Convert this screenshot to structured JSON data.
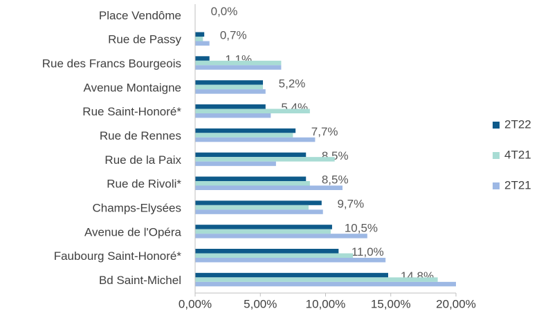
{
  "chart_data": {
    "type": "hbar",
    "categories": [
      "Place Vendôme",
      "Rue de Passy",
      "Rue des Francs Bourgeois",
      "Avenue Montaigne",
      "Rue Saint-Honoré*",
      "Rue de Rennes",
      "Rue de la Paix",
      "Rue de Rivoli*",
      "Champs-Elysées",
      "Avenue de l'Opéra",
      "Faubourg Saint-Honoré*",
      "Bd Saint-Michel"
    ],
    "series": [
      {
        "name": "2T22",
        "color": "#0e5a8a",
        "values": [
          0,
          0.7,
          1.1,
          5.2,
          5.4,
          7.7,
          8.5,
          8.5,
          9.7,
          10.5,
          11.0,
          14.8
        ],
        "value_labels": [
          "0,0%",
          "0,7%",
          "1,1%",
          "5,2%",
          "5,4%",
          "7,7%",
          "8,5%",
          "8,5%",
          "9,7%",
          "10,5%",
          "11,0%",
          "14,8%"
        ]
      },
      {
        "name": "4T21",
        "color": "#a8dcd4",
        "values": [
          0,
          0.6,
          6.6,
          5.2,
          8.8,
          7.5,
          10.7,
          8.8,
          8.7,
          10.4,
          12.1,
          18.6
        ]
      },
      {
        "name": "2T21",
        "color": "#9db8e4",
        "values": [
          0,
          1.1,
          6.6,
          5.4,
          5.8,
          9.2,
          6.2,
          11.3,
          9.8,
          13.2,
          14.6,
          20.0
        ]
      }
    ],
    "xlim": [
      0,
      20
    ],
    "xticks": [
      {
        "value": 0,
        "label": "0,00%"
      },
      {
        "value": 5,
        "label": "5,00%"
      },
      {
        "value": 10,
        "label": "10,00%"
      },
      {
        "value": 15,
        "label": "15,00%"
      },
      {
        "value": 20,
        "label": "20,00%"
      }
    ],
    "legend": "right"
  }
}
